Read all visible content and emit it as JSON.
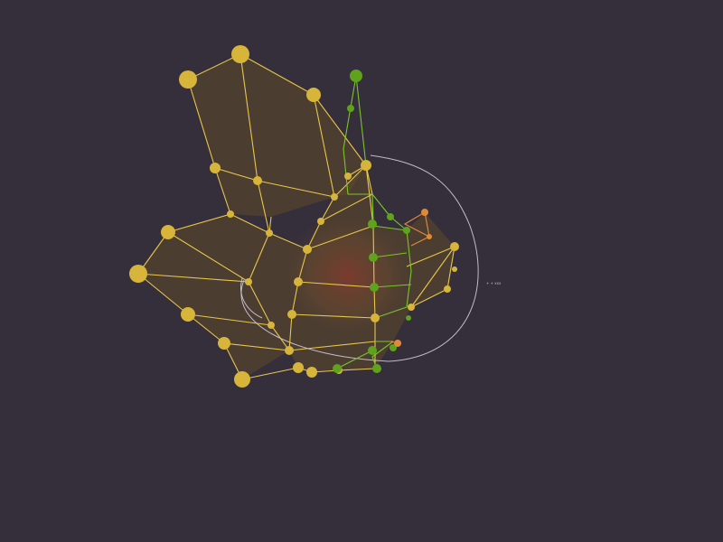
{
  "scene": {
    "background": "#352e3b",
    "colors": {
      "yellow_mesh": "#e8c64a",
      "yellow_node": "#d7b43a",
      "green_mesh": "#79c62a",
      "green_node": "#5fa31c",
      "orange_mesh": "#e8893a",
      "orbit_ring": "#d9d4e6"
    },
    "orbit_label": "+ + xxx"
  }
}
